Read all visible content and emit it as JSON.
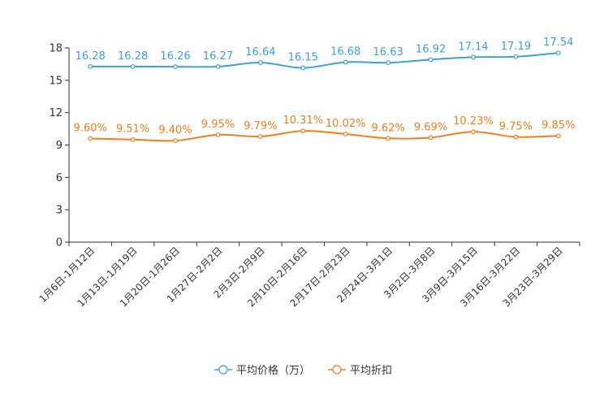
{
  "chart_data": {
    "type": "line",
    "title": "",
    "xlabel": "",
    "ylabel": "",
    "ylim": [
      0,
      18
    ],
    "yticks": [
      0,
      3,
      6,
      9,
      12,
      15,
      18
    ],
    "categories": [
      "1月6日-1月12日",
      "1月13日-1月19日",
      "1月20日-1月26日",
      "1月27日-2月2日",
      "2月3日-2月9日",
      "2月10日-2月16日",
      "2月17日-2月23日",
      "2月24日-3月1日",
      "3月2日-3月8日",
      "3月9日-3月15日",
      "3月16日-3月22日",
      "3月23日-3月29日"
    ],
    "series": [
      {
        "name": "平均价格（万）",
        "color": "#3ba1d6",
        "values": [
          16.28,
          16.28,
          16.26,
          16.27,
          16.64,
          16.15,
          16.68,
          16.63,
          16.92,
          17.14,
          17.19,
          17.54
        ],
        "labels": [
          "16.28",
          "16.28",
          "16.26",
          "16.27",
          "16.64",
          "16.15",
          "16.68",
          "16.63",
          "16.92",
          "17.14",
          "17.19",
          "17.54"
        ]
      },
      {
        "name": "平均折扣",
        "color": "#f47d1f",
        "values": [
          9.6,
          9.51,
          9.4,
          9.95,
          9.79,
          10.31,
          10.02,
          9.62,
          9.69,
          10.23,
          9.75,
          9.85
        ],
        "labels": [
          "9.60%",
          "9.51%",
          "9.40%",
          "9.95%",
          "9.79%",
          "10.31%",
          "10.02%",
          "9.62%",
          "9.69%",
          "10.23%",
          "9.75%",
          "9.85%"
        ]
      }
    ],
    "legend_position": "bottom"
  }
}
